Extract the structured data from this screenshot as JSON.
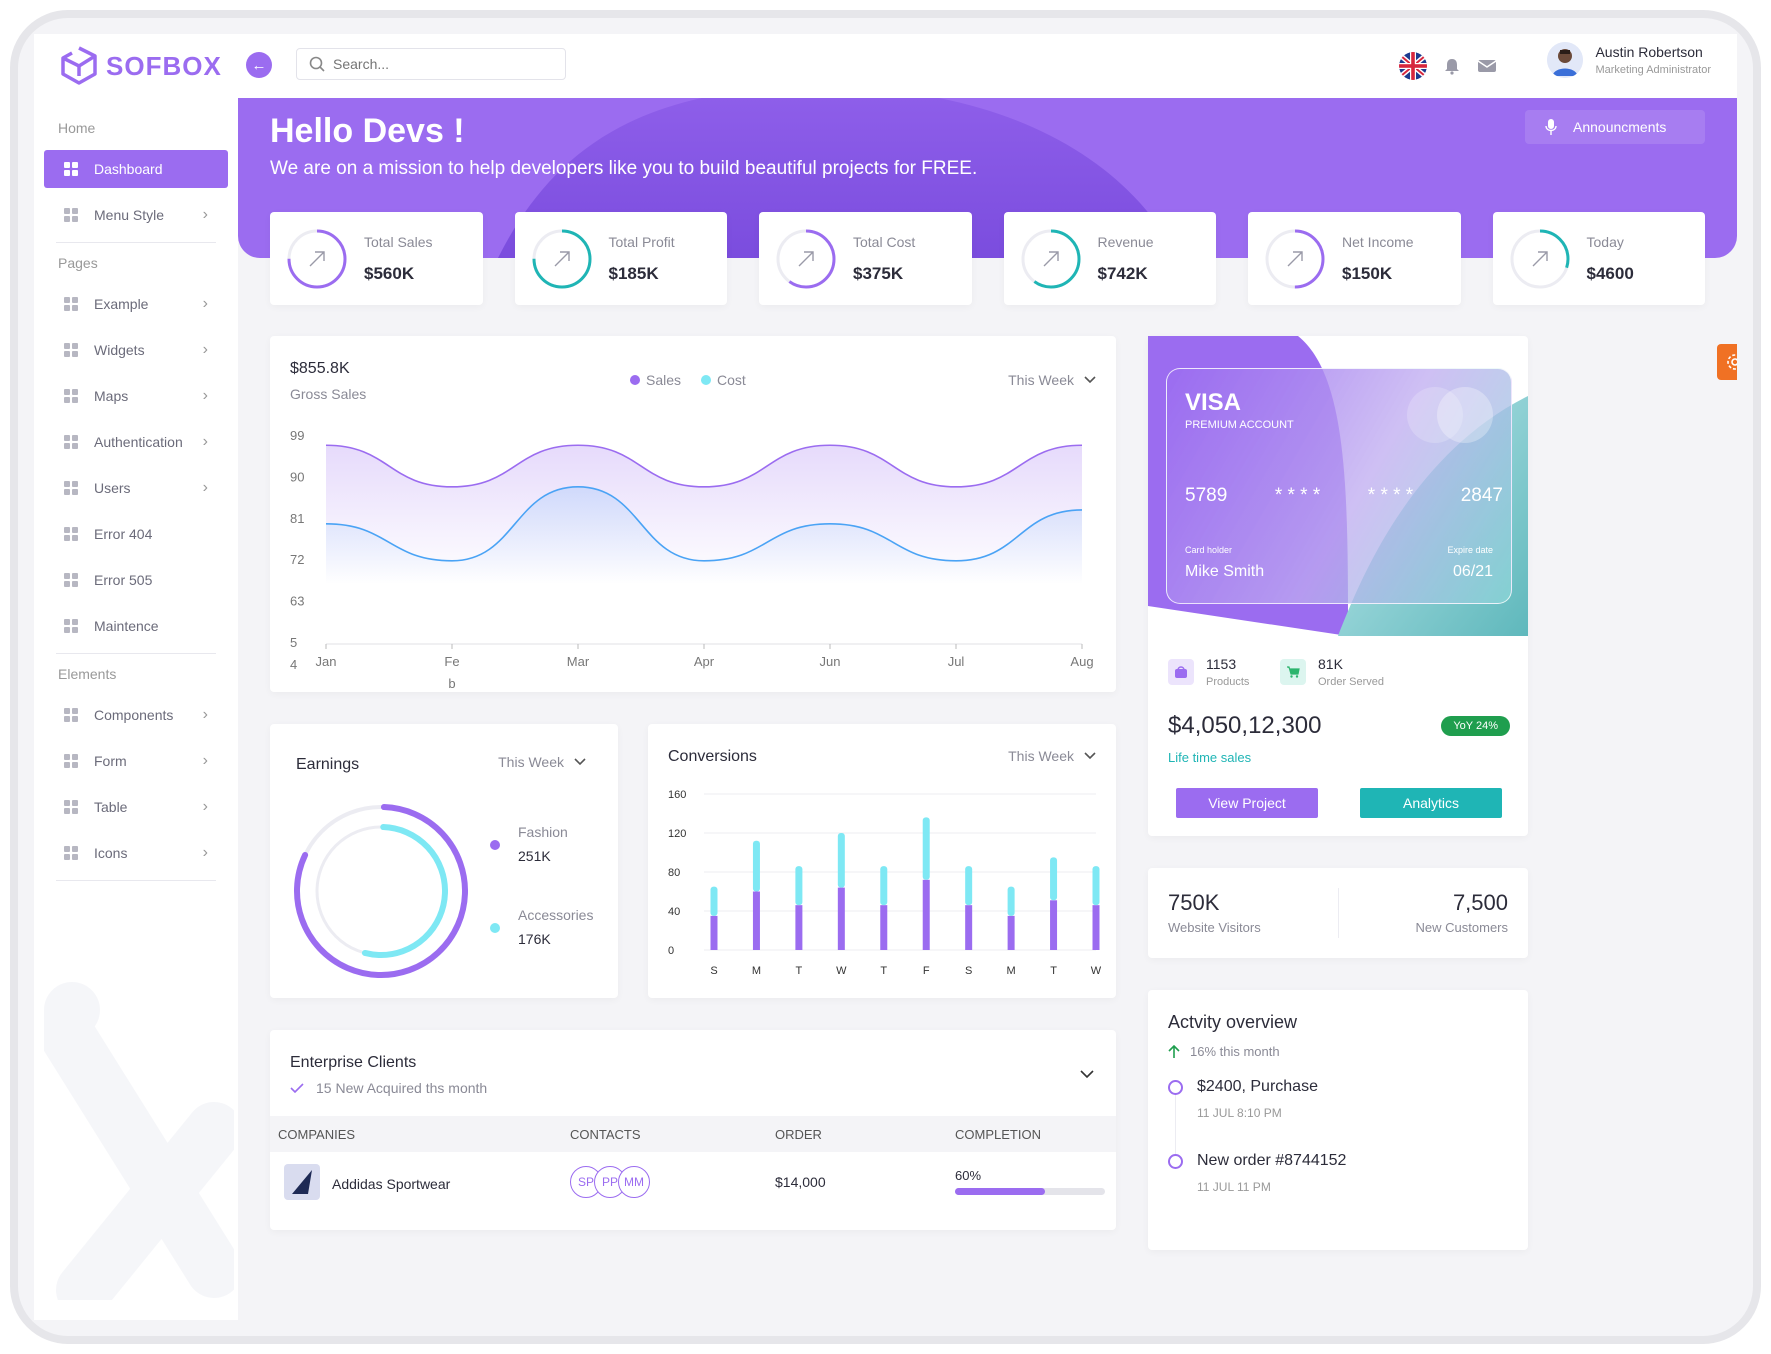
{
  "app": {
    "logo_text": "SOFBOX"
  },
  "search": {
    "placeholder": "Search..."
  },
  "user": {
    "name": "Austin Robertson",
    "role": "Marketing Administrator"
  },
  "sidebar": {
    "sections": [
      "Home",
      "Pages",
      "Elements"
    ],
    "home_items": [
      {
        "label": "Dashboard",
        "icon": "dashboard-icon"
      },
      {
        "label": "Menu Style",
        "icon": "menu-style-icon"
      }
    ],
    "page_items": [
      {
        "label": "Example",
        "icon": "example-icon"
      },
      {
        "label": "Widgets",
        "icon": "widgets-icon"
      },
      {
        "label": "Maps",
        "icon": "map-pin-icon"
      },
      {
        "label": "Authentication",
        "icon": "shield-icon"
      },
      {
        "label": "Users",
        "icon": "users-icon"
      },
      {
        "label": "Error 404",
        "icon": "alert-icon"
      },
      {
        "label": "Error 505",
        "icon": "warning-icon"
      },
      {
        "label": "Maintence",
        "icon": "message-icon"
      }
    ],
    "element_items": [
      {
        "label": "Components",
        "icon": "components-icon"
      },
      {
        "label": "Form",
        "icon": "form-icon"
      },
      {
        "label": "Table",
        "icon": "gear-icon"
      },
      {
        "label": "Icons",
        "icon": "info-icon"
      }
    ]
  },
  "hero": {
    "title": "Hello Devs !",
    "subtitle": "We are on a mission to help developers like you to build beautiful projects for FREE.",
    "announcements": "Announcments"
  },
  "stats": [
    {
      "label": "Total Sales",
      "value": "$560K",
      "color": "#9b6cf0",
      "progress": 0.75
    },
    {
      "label": "Total Profit",
      "value": "$185K",
      "color": "#1fb5b5",
      "progress": 0.75
    },
    {
      "label": "Total Cost",
      "value": "$375K",
      "color": "#9b6cf0",
      "progress": 0.6
    },
    {
      "label": "Revenue",
      "value": "$742K",
      "color": "#1fb5b5",
      "progress": 0.6
    },
    {
      "label": "Net Income",
      "value": "$150K",
      "color": "#9b6cf0",
      "progress": 0.5
    },
    {
      "label": "Today",
      "value": "$4600",
      "color": "#1fb5b5",
      "progress": 0.3
    }
  ],
  "gross": {
    "value": "$855.8K",
    "label": "Gross Sales",
    "legend": [
      "Sales",
      "Cost"
    ],
    "period": "This Week"
  },
  "earnings": {
    "title": "Earnings",
    "period": "This Week",
    "items": [
      {
        "label": "Fashion",
        "value": "251K",
        "color": "#9b6cf0"
      },
      {
        "label": "Accessories",
        "value": "176K",
        "color": "#7ee8f4"
      }
    ]
  },
  "conversions": {
    "title": "Conversions",
    "period": "This Week"
  },
  "chart_data": [
    {
      "type": "area",
      "categories": [
        "Jan",
        "Fe b",
        "Mar",
        "Apr",
        "Jun",
        "Jul",
        "Aug"
      ],
      "y_ticks": [
        "99",
        "90",
        "81",
        "72",
        "63",
        "5 4"
      ],
      "series": [
        {
          "name": "Sales",
          "color": "#9b6cf0",
          "values": [
            97,
            88,
            97,
            88,
            97,
            88,
            97
          ]
        },
        {
          "name": "Cost",
          "color": "#4aa3f5",
          "values": [
            80,
            72,
            88,
            72,
            80,
            72,
            83
          ]
        }
      ],
      "ylim": [
        54,
        99
      ]
    },
    {
      "type": "bar",
      "categories": [
        "S",
        "M",
        "T",
        "W",
        "T",
        "F",
        "S",
        "M",
        "T",
        "W"
      ],
      "y_ticks": [
        "160",
        "120",
        "80",
        "40",
        "0"
      ],
      "ylim": [
        0,
        160
      ],
      "stacked": true,
      "series": [
        {
          "color": "#9b6cf0",
          "values": [
            35,
            60,
            46,
            64,
            46,
            72,
            46,
            35,
            51,
            46
          ]
        },
        {
          "color": "#7ee8f4",
          "values": [
            30,
            52,
            40,
            56,
            40,
            64,
            40,
            30,
            44,
            40
          ]
        }
      ]
    }
  ],
  "clients": {
    "title": "Enterprise Clients",
    "subtitle": "15 New Acquired ths month",
    "columns": [
      "COMPANIES",
      "CONTACTS",
      "ORDER",
      "COMPLETION"
    ],
    "rows": [
      {
        "company": "Addidas Sportwear",
        "contacts": [
          "SP",
          "PP",
          "MM"
        ],
        "order": "$14,000",
        "completion": "60%",
        "progress": 0.6
      }
    ]
  },
  "visa": {
    "brand": "VISA",
    "account": "PREMIUM ACCOUNT",
    "number": [
      "5789",
      "* * * *",
      "* * * *",
      "2847"
    ],
    "holder_label": "Card holder",
    "holder": "Mike Smith",
    "expire_label": "Expire date",
    "expire": "06/21"
  },
  "summary": {
    "products_value": "1153",
    "products_label": "Products",
    "orders_value": "81K",
    "orders_label": "Order Served",
    "total": "$4,050,12,300",
    "yoy": "YoY 24%",
    "total_label": "Life time sales",
    "view_button": "View Project",
    "analytics_button": "Analytics"
  },
  "visitors": {
    "visitors_value": "750K",
    "visitors_label": "Website Visitors",
    "customers_value": "7,500",
    "customers_label": "New Customers"
  },
  "activity": {
    "title": "Actvity overview",
    "change": "16% this month",
    "items": [
      {
        "title": "$2400, Purchase",
        "time": "11 JUL 8:10 PM"
      },
      {
        "title": "New order #8744152",
        "time": "11 JUL 11 PM"
      }
    ]
  },
  "colors": {
    "accent": "#9b6cf0",
    "teal": "#1fb5b5",
    "cyan": "#7ee8f4",
    "orange": "#f07124"
  }
}
